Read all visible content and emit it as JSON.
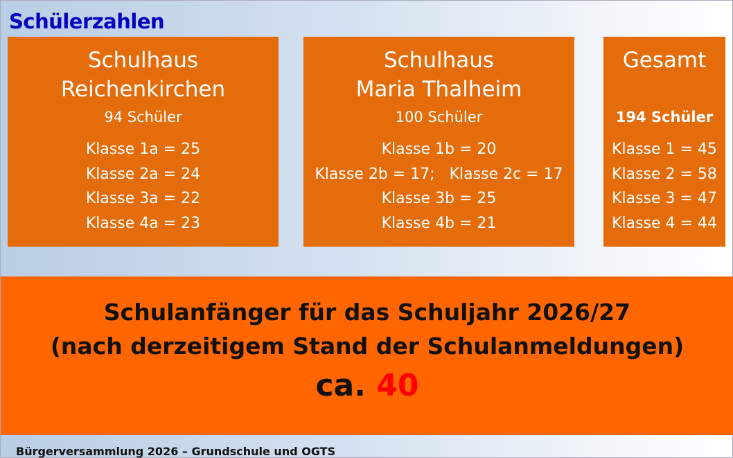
{
  "title": "Schülerzahlen",
  "boxes": [
    {
      "heading1": "Schulhaus",
      "heading2": "Reichenkirchen",
      "count": "94 Schüler",
      "classes": [
        "Klasse 1a = 25",
        "Klasse 2a = 24",
        "Klasse 3a = 22",
        "Klasse 4a = 23"
      ]
    },
    {
      "heading1": "Schulhaus",
      "heading2": "Maria Thalheim",
      "count": "100 Schüler",
      "classes": [
        "Klasse 1b = 20",
        "Klasse 2b = 17;   Klasse 2c = 17",
        "Klasse 3b = 25",
        "Klasse 4b = 21"
      ]
    },
    {
      "heading1": "Gesamt",
      "count": "194 Schüler",
      "classes": [
        "Klasse 1 = 45",
        "Klasse 2 = 58",
        "Klasse 3 = 47",
        "Klasse 4 = 44"
      ]
    }
  ],
  "banner": {
    "line1": "Schulanfänger für das Schuljahr 2026/27",
    "line2": "(nach derzeitigem Stand der Schulanmeldungen)",
    "prefix": "ca.",
    "number": "40"
  },
  "footer": "Bürgerversammlung 2026 – Grundschule und OGTS",
  "colors": {
    "box": "#e46c0a",
    "banner": "#ff6600",
    "title": "#0000c0",
    "highlight": "#ff0000"
  }
}
